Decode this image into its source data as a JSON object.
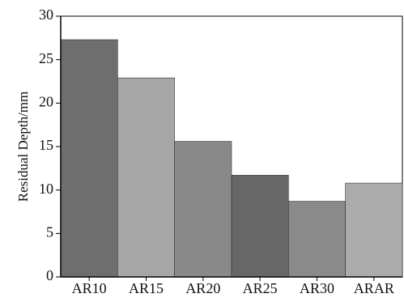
{
  "chart_data": {
    "type": "bar",
    "title": "",
    "xlabel": "",
    "ylabel": "Residual Depth/mm",
    "ylim": [
      0,
      30
    ],
    "yticks": [
      0,
      5,
      10,
      15,
      20,
      25,
      30
    ],
    "grid": false,
    "legend": "none",
    "categories": [
      "AR10",
      "AR15",
      "AR20",
      "AR25",
      "AR30",
      "ARAR"
    ],
    "values": [
      27.3,
      22.9,
      15.6,
      11.7,
      8.7,
      10.8
    ],
    "bar_colors": [
      "#6e6e6e",
      "#a6a6a6",
      "#898989",
      "#676767",
      "#8a8a8a",
      "#ababab"
    ]
  }
}
